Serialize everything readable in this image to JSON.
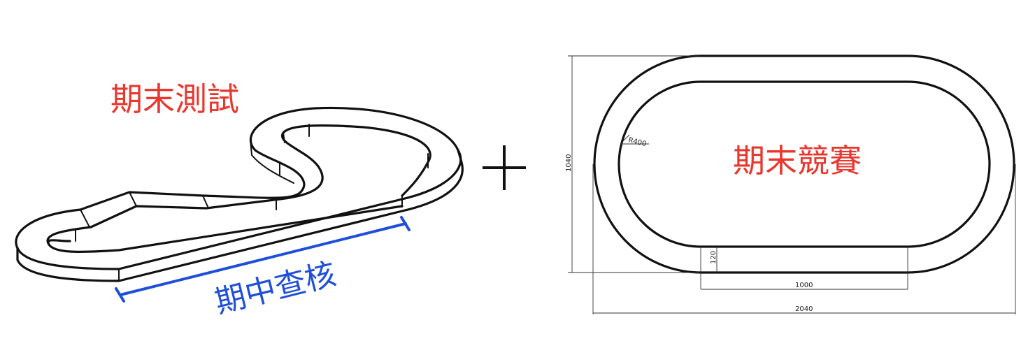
{
  "labels": {
    "final_test": "期末測試",
    "midterm": "期中查核",
    "final_competition": "期末競賽",
    "plus": "+"
  },
  "dimensions": {
    "radius": "R400",
    "height": "1040",
    "lane_width": "120",
    "straight_length": "1000",
    "total_length": "2040"
  },
  "colors": {
    "final_label": "#e8372e",
    "midterm_label": "#1f4fd8",
    "track": "#111111"
  }
}
